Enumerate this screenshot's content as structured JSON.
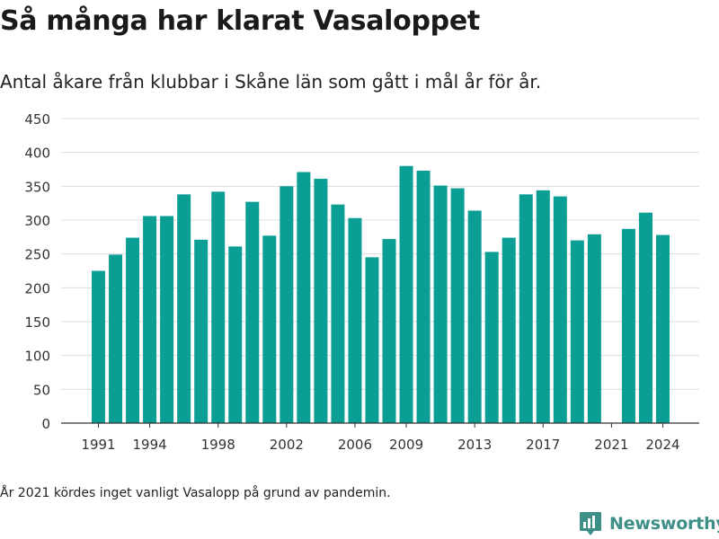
{
  "title": "Så många har klarat Vasaloppet",
  "subtitle": "Antal åkare från klubbar i Skåne län som gått i mål år för år.",
  "note": "År 2021 kördes inget vanligt Vasalopp på grund av pandemin.",
  "brand": {
    "name": "Newsworthy",
    "color": "#3d8f87",
    "icon": "bar-chart-logo-icon"
  },
  "chart_data": {
    "type": "bar",
    "title": "",
    "xlabel": "",
    "ylabel": "",
    "color": "#0b9e95",
    "ylim": [
      0,
      450
    ],
    "yticks": [
      "0",
      "50",
      "100",
      "150",
      "200",
      "250",
      "300",
      "350",
      "400",
      "450"
    ],
    "xticks": [
      "1991",
      "1994",
      "1998",
      "2002",
      "2006",
      "2009",
      "2013",
      "2017",
      "2021",
      "2024"
    ],
    "grid": true,
    "x": [
      1991,
      1992,
      1993,
      1994,
      1995,
      1996,
      1997,
      1998,
      1999,
      2000,
      2001,
      2002,
      2003,
      2004,
      2005,
      2006,
      2007,
      2008,
      2009,
      2010,
      2011,
      2012,
      2013,
      2014,
      2015,
      2016,
      2017,
      2018,
      2019,
      2020,
      2021,
      2022,
      2023,
      2024
    ],
    "values": [
      225,
      249,
      274,
      306,
      306,
      338,
      271,
      342,
      261,
      327,
      277,
      350,
      371,
      361,
      323,
      303,
      245,
      272,
      380,
      373,
      351,
      347,
      314,
      253,
      274,
      338,
      344,
      335,
      270,
      279,
      null,
      287,
      311,
      278
    ]
  }
}
